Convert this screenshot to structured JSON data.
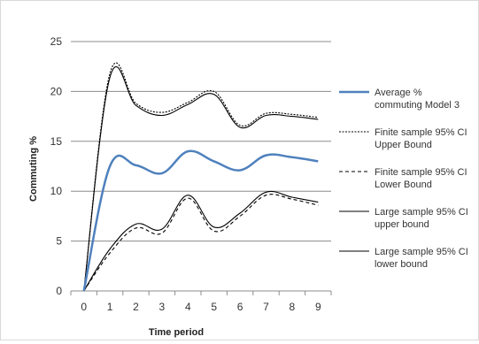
{
  "chart_data": {
    "type": "line",
    "title": "",
    "xlabel": "Time period",
    "ylabel": "Commuting %",
    "x": [
      0,
      1,
      2,
      3,
      4,
      5,
      6,
      7,
      8,
      9
    ],
    "xticks": [
      "0",
      "1",
      "2",
      "3",
      "4",
      "5",
      "6",
      "7",
      "8",
      "9"
    ],
    "yticks": [
      "0",
      "5",
      "10",
      "15",
      "20",
      "25"
    ],
    "xlim": [
      -0.5,
      9.5
    ],
    "ylim": [
      0,
      25
    ],
    "grid": "horizontal",
    "legend_position": "right",
    "series": [
      {
        "name": "Average % commuting Model 3",
        "legend_lines": [
          "Average %",
          "commuting Model 3"
        ],
        "style": "solid",
        "color": "#4f81bd",
        "values": [
          0,
          12.5,
          12.6,
          11.8,
          14.0,
          13.0,
          12.1,
          13.6,
          13.4,
          13.0
        ]
      },
      {
        "name": "Finite sample 95% CI Upper Bound",
        "legend_lines": [
          "Finite sample 95% CI",
          "Upper Bound"
        ],
        "style": "dotted",
        "color": "#000000",
        "values": [
          0,
          21.8,
          18.8,
          17.9,
          18.9,
          20.0,
          16.6,
          17.8,
          17.7,
          17.4
        ]
      },
      {
        "name": "Finite sample 95% CI Lower Bound",
        "legend_lines": [
          "Finite sample 95% CI",
          "Lower Bound"
        ],
        "style": "dashed",
        "color": "#000000",
        "values": [
          0,
          3.8,
          6.3,
          5.8,
          9.3,
          6.0,
          7.5,
          9.6,
          9.2,
          8.6
        ]
      },
      {
        "name": "Large sample 95% CI upper bound",
        "legend_lines": [
          "Large sample 95% CI",
          "upper bound"
        ],
        "style": "solid",
        "color": "#000000",
        "values": [
          0,
          21.4,
          18.6,
          17.6,
          18.7,
          19.7,
          16.4,
          17.6,
          17.5,
          17.2
        ]
      },
      {
        "name": "Large sample 95% CI lower bound",
        "legend_lines": [
          "Large sample 95% CI",
          "lower bound"
        ],
        "style": "solid",
        "color": "#000000",
        "values": [
          0,
          4.2,
          6.7,
          6.2,
          9.6,
          6.4,
          7.8,
          9.9,
          9.4,
          8.9
        ]
      }
    ]
  }
}
